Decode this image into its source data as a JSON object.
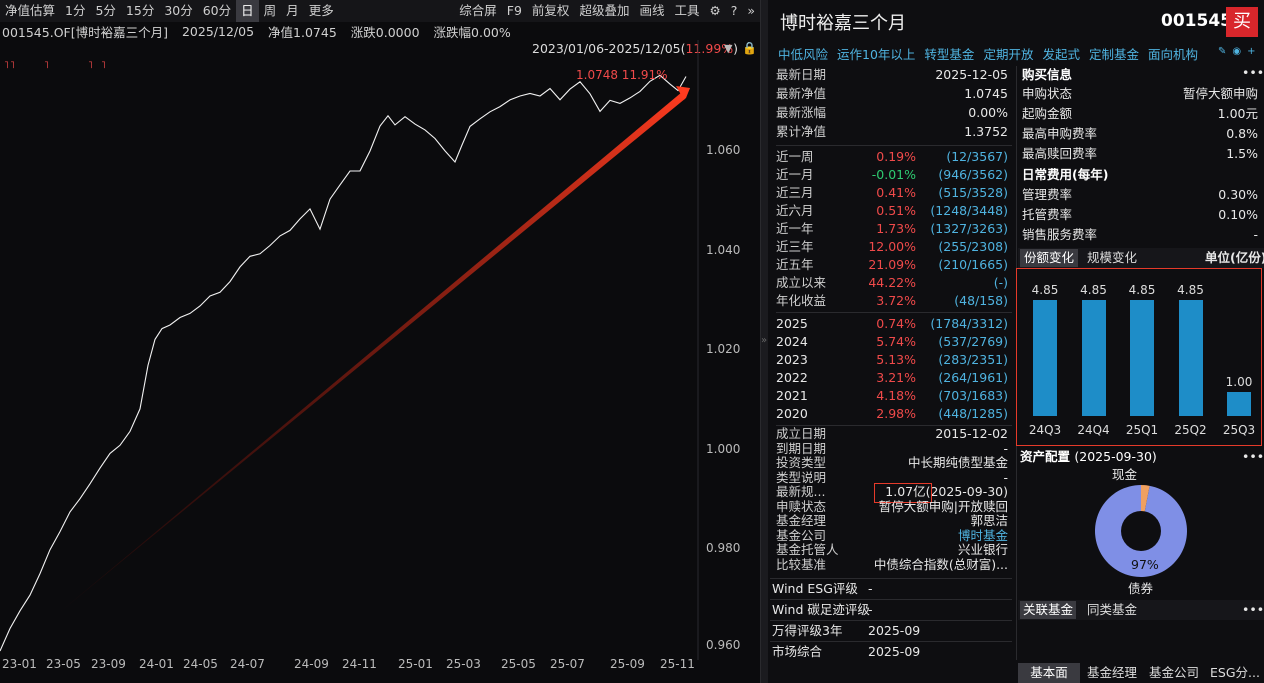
{
  "toolbar": {
    "items": [
      "净值估算",
      "1分",
      "5分",
      "15分",
      "30分",
      "60分",
      "日",
      "周",
      "月",
      "更多"
    ],
    "active_index": 6,
    "right_items": [
      "综合屏",
      "F9",
      "前复权",
      "超级叠加",
      "画线",
      "工具"
    ]
  },
  "info": {
    "code": "001545.OF[博时裕嘉三个月]",
    "date": "2025/12/05",
    "nav": "净值1.0745",
    "change": "涨跌0.0000",
    "pct": "涨跌幅0.00%"
  },
  "range": {
    "label": "2023/01/06-2025/12/05(",
    "pct": "11.99%",
    ")": ")"
  },
  "chart": {
    "peak_label": "1.0748 11.91%",
    "y_ticks": [
      "1.060",
      "1.040",
      "1.020",
      "1.000",
      "0.980",
      "0.960"
    ],
    "x_ticks": [
      "23-01",
      "23-05",
      "23-09",
      "24-01",
      "24-05",
      "24-07",
      "24-09",
      "24-11",
      "25-01",
      "25-03",
      "25-05",
      "25-07",
      "25-09",
      "25-11"
    ]
  },
  "fund": {
    "name": "博时裕嘉三个月",
    "code": "001545",
    "buy": "买",
    "tags": [
      "中低风险",
      "运作10年以上",
      "转型基金",
      "定期开放",
      "发起式",
      "定制基金",
      "面向机构"
    ]
  },
  "basic": [
    [
      "最新日期",
      "2025-12-05"
    ],
    [
      "最新净值",
      "1.0745"
    ],
    [
      "最新涨幅",
      "0.00%"
    ],
    [
      "累计净值",
      "1.3752"
    ]
  ],
  "perf": [
    [
      "近一周",
      "0.19%",
      "(12/3567)",
      "red"
    ],
    [
      "近一月",
      "-0.01%",
      "(946/3562)",
      "green"
    ],
    [
      "近三月",
      "0.41%",
      "(515/3528)",
      "red"
    ],
    [
      "近六月",
      "0.51%",
      "(1248/3448)",
      "red"
    ],
    [
      "近一年",
      "1.73%",
      "(1327/3263)",
      "red"
    ],
    [
      "近三年",
      "12.00%",
      "(255/2308)",
      "red"
    ],
    [
      "近五年",
      "21.09%",
      "(210/1665)",
      "red"
    ],
    [
      "成立以来",
      "44.22%",
      "(-)",
      "red"
    ],
    [
      "年化收益",
      "3.72%",
      "(48/158)",
      "red"
    ]
  ],
  "yearly": [
    [
      "2025",
      "0.74%",
      "(1784/3312)"
    ],
    [
      "2024",
      "5.74%",
      "(537/2769)"
    ],
    [
      "2023",
      "5.13%",
      "(283/2351)"
    ],
    [
      "2022",
      "3.21%",
      "(264/1961)"
    ],
    [
      "2021",
      "4.18%",
      "(703/1683)"
    ],
    [
      "2020",
      "2.98%",
      "(448/1285)"
    ]
  ],
  "details": [
    [
      "成立日期",
      "2015-12-02"
    ],
    [
      "到期日期",
      "-"
    ],
    [
      "投资类型",
      "中长期纯债型基金"
    ],
    [
      "类型说明",
      "-"
    ],
    [
      "最新规...",
      "1.07亿(2025-09-30)"
    ],
    [
      "申赎状态",
      "暂停大额申购|开放赎回"
    ],
    [
      "基金经理",
      "郭思洁"
    ],
    [
      "基金公司",
      "博时基金"
    ],
    [
      "基金托管人",
      "兴业银行"
    ],
    [
      "比较基准",
      "中债综合指数(总财富)..."
    ]
  ],
  "ratings": [
    [
      "Wind ESG评级",
      "-"
    ],
    [
      "Wind 碳足迹评级",
      "-"
    ],
    [
      "万得评级3年",
      "2025-09"
    ],
    [
      "市场综合",
      "2025-09"
    ]
  ],
  "buy_info": {
    "title": "购买信息",
    "rows": [
      [
        "申购状态",
        "暂停大额申购"
      ],
      [
        "起购金额",
        "1.00元"
      ],
      [
        "最高申购费率",
        "0.8%"
      ],
      [
        "最高赎回费率",
        "1.5%"
      ]
    ]
  },
  "fees": {
    "title": "日常费用(每年)",
    "rows": [
      [
        "管理费率",
        "0.30%"
      ],
      [
        "托管费率",
        "0.10%"
      ],
      [
        "销售服务费率",
        "-"
      ]
    ]
  },
  "share": {
    "tab1": "份额变化",
    "tab2": "规模变化",
    "unit": "单位(亿份)"
  },
  "chart_data": {
    "type": "bar",
    "categories": [
      "24Q3",
      "24Q4",
      "25Q1",
      "25Q2",
      "25Q3"
    ],
    "values": [
      4.85,
      4.85,
      4.85,
      4.85,
      1.0
    ],
    "ylim": [
      0,
      5
    ]
  },
  "asset": {
    "title": "资产配置",
    "date": "(2025-09-30)",
    "cash": "现金",
    "bond": "债券",
    "bond_pct": "97%",
    "bond_val": 97,
    "cash_val": 3
  },
  "related": {
    "tab1": "关联基金",
    "tab2": "同类基金"
  },
  "bottom_tabs": [
    "基本面",
    "基金经理",
    "基金公司",
    "ESG分..."
  ]
}
